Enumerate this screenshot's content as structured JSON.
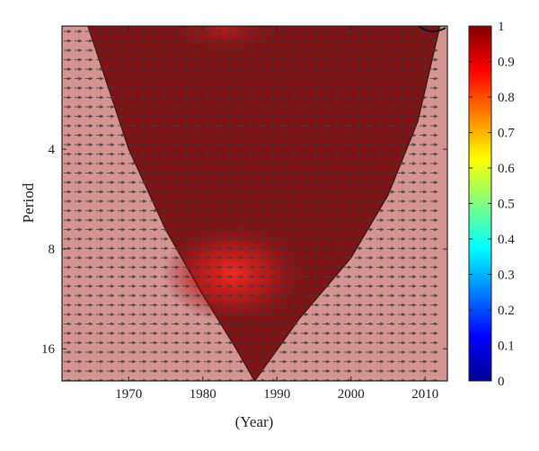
{
  "chart_data": {
    "type": "heatmap",
    "subtype": "wavelet-coherence",
    "title": "",
    "xlabel": "(Year)",
    "ylabel": "Period",
    "x_range": [
      1961,
      2013
    ],
    "y_range": [
      1.7,
      20
    ],
    "y_scale": "log2",
    "y_inverted": true,
    "x_ticks": [
      1970,
      1980,
      1990,
      2000,
      2010
    ],
    "y_ticks": [
      4,
      8,
      16
    ],
    "colorbar": {
      "min": 0,
      "max": 1,
      "ticks": [
        0,
        0.1,
        0.2,
        0.3,
        0.4,
        0.5,
        0.6,
        0.7,
        0.8,
        0.9,
        1
      ]
    },
    "cone_of_influence": {
      "left": [
        [
          1964.5,
          1.7
        ],
        [
          1970,
          4
        ],
        [
          1975,
          7
        ],
        [
          1980,
          11
        ],
        [
          1984.5,
          16
        ],
        [
          1987,
          20
        ]
      ],
      "right": [
        [
          1987,
          20
        ],
        [
          1993,
          13
        ],
        [
          2000,
          8.5
        ],
        [
          2005,
          5.5
        ],
        [
          2009,
          3.3
        ],
        [
          2012,
          1.7
        ]
      ]
    },
    "regions": [
      {
        "name": "inside-coi",
        "coherence": 0.97,
        "color": "#7f1416"
      },
      {
        "name": "hotspot",
        "year": 1984,
        "period": 9.5,
        "coherence": 0.88,
        "color": "#e3201d"
      },
      {
        "name": "outside-coi",
        "coherence": 0.95,
        "color": "#d49492"
      }
    ],
    "phase_arrows": {
      "direction": "right",
      "meaning": "in-phase",
      "color": "#3a3a3a"
    }
  }
}
